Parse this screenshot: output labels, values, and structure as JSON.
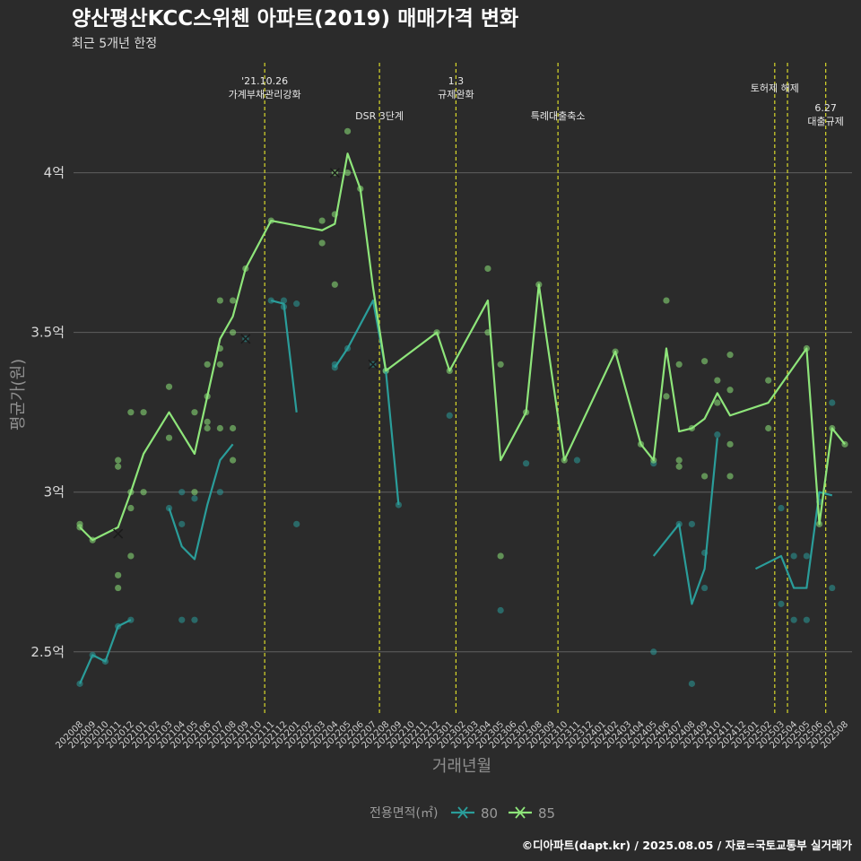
{
  "chart_data": {
    "type": "line",
    "title": "양산평산KCC스위첸 아파트(2019) 매매가격 변화",
    "subtitle": "최근 5개년 한정",
    "xlabel": "거래년월",
    "ylabel": "평균가(원)",
    "caption": "©디아파트(dapt.kr) / 2025.08.05 / 자료=국토교통부 실거래가",
    "ylim": [
      2.3,
      4.35
    ],
    "yticks": [
      {
        "value": 2.5,
        "label": "2.5억"
      },
      {
        "value": 3.0,
        "label": "3억"
      },
      {
        "value": 3.5,
        "label": "3.5억"
      },
      {
        "value": 4.0,
        "label": "4억"
      }
    ],
    "categories": [
      "202008",
      "202009",
      "202010",
      "202011",
      "202012",
      "202101",
      "202102",
      "202103",
      "202104",
      "202105",
      "202106",
      "202107",
      "202108",
      "202109",
      "202110",
      "202111",
      "202112",
      "202201",
      "202202",
      "202203",
      "202204",
      "202205",
      "202206",
      "202207",
      "202208",
      "202209",
      "202210",
      "202211",
      "202212",
      "202301",
      "202302",
      "202303",
      "202304",
      "202305",
      "202306",
      "202307",
      "202308",
      "202309",
      "202310",
      "202311",
      "202312",
      "202401",
      "202402",
      "202403",
      "202404",
      "202405",
      "202406",
      "202407",
      "202408",
      "202409",
      "202410",
      "202411",
      "202412",
      "202501",
      "202502",
      "202503",
      "202504",
      "202505",
      "202506",
      "202507",
      "202508"
    ],
    "legend": {
      "title": "전용면적(㎡)",
      "position": "bottom"
    },
    "series": [
      {
        "name": "80",
        "color": "#2a9d9a",
        "line": [
          [
            0,
            2.4
          ],
          [
            1,
            2.49
          ],
          [
            2,
            2.47
          ],
          [
            3,
            2.58
          ],
          [
            4,
            2.6
          ],
          null,
          [
            7,
            2.95
          ],
          [
            8,
            2.83
          ],
          [
            9,
            2.79
          ],
          [
            10,
            2.96
          ],
          [
            11,
            3.1
          ],
          [
            12,
            3.15
          ],
          null,
          [
            15,
            3.6
          ],
          [
            16,
            3.59
          ],
          [
            17,
            3.25
          ],
          null,
          [
            20,
            3.39
          ],
          [
            21,
            3.45
          ],
          [
            23,
            3.6
          ],
          [
            24,
            3.38
          ],
          [
            25,
            2.96
          ],
          null,
          [
            45,
            2.8
          ],
          [
            47,
            2.9
          ],
          [
            48,
            2.65
          ],
          [
            49,
            2.76
          ],
          [
            50,
            3.17
          ],
          null,
          [
            53,
            2.76
          ],
          [
            55,
            2.8
          ],
          [
            56,
            2.7
          ],
          [
            57,
            2.7
          ],
          [
            58,
            3.0
          ],
          [
            59,
            2.99
          ]
        ],
        "points": [
          [
            0,
            2.4
          ],
          [
            1,
            2.49
          ],
          [
            2,
            2.47
          ],
          [
            3,
            2.58
          ],
          [
            4,
            2.6
          ],
          [
            7,
            2.95
          ],
          [
            8,
            2.9
          ],
          [
            8,
            2.6
          ],
          [
            8,
            3.0
          ],
          [
            9,
            2.6
          ],
          [
            9,
            2.98
          ],
          [
            11,
            3.0
          ],
          [
            13,
            3.48
          ],
          [
            15,
            3.6
          ],
          [
            16,
            3.6
          ],
          [
            16,
            3.58
          ],
          [
            17,
            3.59
          ],
          [
            17,
            2.9
          ],
          [
            20,
            3.39
          ],
          [
            20,
            3.4
          ],
          [
            21,
            3.45
          ],
          [
            23,
            3.4
          ],
          [
            24,
            3.38
          ],
          [
            25,
            2.96
          ],
          [
            29,
            3.24
          ],
          [
            33,
            2.63
          ],
          [
            35,
            3.09
          ],
          [
            39,
            3.1
          ],
          [
            45,
            2.5
          ],
          [
            45,
            3.09
          ],
          [
            47,
            2.9
          ],
          [
            48,
            2.9
          ],
          [
            48,
            2.4
          ],
          [
            49,
            2.81
          ],
          [
            49,
            2.7
          ],
          [
            50,
            3.18
          ],
          [
            55,
            2.65
          ],
          [
            55,
            2.95
          ],
          [
            56,
            2.8
          ],
          [
            56,
            2.6
          ],
          [
            57,
            2.6
          ],
          [
            57,
            2.8
          ],
          [
            58,
            2.97
          ],
          [
            59,
            3.28
          ],
          [
            59,
            2.7
          ]
        ],
        "crosses": [
          [
            13,
            3.48
          ],
          [
            23,
            3.4
          ]
        ]
      },
      {
        "name": "85",
        "color": "#8ee57a",
        "line": [
          [
            0,
            2.89
          ],
          [
            1,
            2.85
          ],
          [
            3,
            2.89
          ],
          [
            4,
            3.0
          ],
          [
            5,
            3.12
          ],
          [
            7,
            3.25
          ],
          [
            9,
            3.12
          ],
          [
            10,
            3.3
          ],
          [
            11,
            3.48
          ],
          [
            12,
            3.55
          ],
          [
            13,
            3.7
          ],
          [
            15,
            3.85
          ],
          [
            19,
            3.82
          ],
          [
            20,
            3.84
          ],
          [
            21,
            4.06
          ],
          [
            22,
            3.95
          ],
          [
            23,
            3.64
          ],
          [
            24,
            3.38
          ],
          [
            28,
            3.5
          ],
          [
            29,
            3.38
          ],
          [
            32,
            3.6
          ],
          [
            33,
            3.1
          ],
          [
            35,
            3.25
          ],
          [
            36,
            3.65
          ],
          [
            38,
            3.1
          ],
          [
            42,
            3.44
          ],
          [
            44,
            3.15
          ],
          [
            45,
            3.1
          ],
          [
            46,
            3.45
          ],
          [
            47,
            3.19
          ],
          [
            48,
            3.2
          ],
          [
            49,
            3.23
          ],
          [
            50,
            3.31
          ],
          [
            51,
            3.24
          ],
          [
            54,
            3.28
          ],
          [
            57,
            3.45
          ],
          [
            58,
            2.9
          ],
          [
            59,
            3.2
          ],
          [
            60,
            3.15
          ]
        ],
        "points": [
          [
            0,
            2.9
          ],
          [
            0,
            2.89
          ],
          [
            1,
            2.85
          ],
          [
            3,
            3.1
          ],
          [
            3,
            3.08
          ],
          [
            3,
            2.74
          ],
          [
            3,
            2.7
          ],
          [
            4,
            3.25
          ],
          [
            4,
            2.95
          ],
          [
            4,
            2.8
          ],
          [
            4,
            3.0
          ],
          [
            5,
            3.25
          ],
          [
            5,
            3.0
          ],
          [
            7,
            3.33
          ],
          [
            7,
            3.17
          ],
          [
            9,
            3.25
          ],
          [
            9,
            3.0
          ],
          [
            10,
            3.4
          ],
          [
            10,
            3.3
          ],
          [
            10,
            3.22
          ],
          [
            10,
            3.2
          ],
          [
            11,
            3.6
          ],
          [
            11,
            3.45
          ],
          [
            11,
            3.4
          ],
          [
            11,
            3.2
          ],
          [
            12,
            3.6
          ],
          [
            12,
            3.5
          ],
          [
            12,
            3.2
          ],
          [
            12,
            3.1
          ],
          [
            13,
            3.7
          ],
          [
            15,
            3.85
          ],
          [
            19,
            3.85
          ],
          [
            19,
            3.78
          ],
          [
            20,
            4.0
          ],
          [
            20,
            3.87
          ],
          [
            20,
            3.65
          ],
          [
            21,
            4.13
          ],
          [
            21,
            4.0
          ],
          [
            22,
            3.95
          ],
          [
            24,
            3.38
          ],
          [
            28,
            3.5
          ],
          [
            29,
            3.38
          ],
          [
            32,
            3.7
          ],
          [
            32,
            3.5
          ],
          [
            33,
            3.4
          ],
          [
            33,
            2.8
          ],
          [
            35,
            3.25
          ],
          [
            36,
            3.65
          ],
          [
            38,
            3.1
          ],
          [
            42,
            3.44
          ],
          [
            44,
            3.15
          ],
          [
            45,
            3.1
          ],
          [
            46,
            3.6
          ],
          [
            46,
            3.3
          ],
          [
            47,
            3.4
          ],
          [
            47,
            3.1
          ],
          [
            47,
            3.08
          ],
          [
            48,
            3.2
          ],
          [
            49,
            3.41
          ],
          [
            49,
            3.05
          ],
          [
            50,
            3.35
          ],
          [
            50,
            3.28
          ],
          [
            51,
            3.43
          ],
          [
            51,
            3.32
          ],
          [
            51,
            3.05
          ],
          [
            51,
            3.15
          ],
          [
            54,
            3.35
          ],
          [
            54,
            3.2
          ],
          [
            57,
            3.45
          ],
          [
            58,
            2.9
          ],
          [
            59,
            3.2
          ],
          [
            60,
            3.15
          ]
        ],
        "crosses": [
          [
            3,
            2.87
          ],
          [
            20,
            4.0
          ]
        ]
      }
    ],
    "events": [
      {
        "x": 14.5,
        "lines": [
          "'21.10.26",
          "가계부채관리강화"
        ],
        "row": 0
      },
      {
        "x": 23.5,
        "lines": [
          "DSR 3단계"
        ],
        "row": 2
      },
      {
        "x": 29.5,
        "lines": [
          "1.3",
          "규제완화"
        ],
        "row": 0
      },
      {
        "x": 37.5,
        "lines": [
          "특례대출축소"
        ],
        "row": 2
      },
      {
        "x": 54.5,
        "lines": [
          "토허제 해제"
        ],
        "row": 1
      },
      {
        "x": 55.5,
        "lines": [],
        "row": 1
      },
      {
        "x": 58.5,
        "lines": [
          "6.27",
          "대출규제"
        ],
        "row": 3
      }
    ]
  }
}
